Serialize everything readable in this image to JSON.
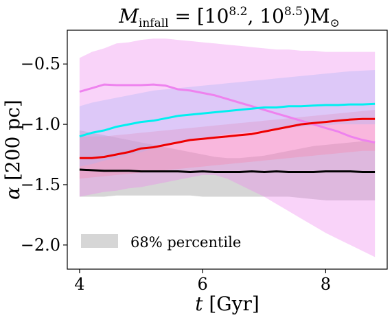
{
  "chart_data": {
    "type": "line",
    "title": "M_infall = [10^8.2, 10^8.5) M_sun",
    "title_parts": {
      "m": "M",
      "m_sub": "infall",
      "eq": " = [10",
      "exp1": "8.2",
      "sep": ", 10",
      "exp2": "8.5",
      "close": ")M",
      "sun": "⊙"
    },
    "xlabel": "t [Gyr]",
    "xlabel_parts": {
      "var": "t",
      "unit": " [Gyr]"
    },
    "ylabel": "α [200 pc]",
    "ylabel_parts": {
      "var": "α",
      "unit": " [200 pc]"
    },
    "xlim": [
      3.8,
      9.0
    ],
    "ylim": [
      -2.2,
      -0.22
    ],
    "x_ticks": [
      4,
      6,
      8
    ],
    "x_tick_labels": [
      "4",
      "6",
      "8"
    ],
    "y_ticks": [
      -2.0,
      -1.5,
      -1.0,
      -0.5
    ],
    "y_tick_labels": [
      "−2.0",
      "−1.5",
      "−1.0",
      "−0.5"
    ],
    "grid": false,
    "legend": {
      "placement": "lower-left",
      "entries": [
        {
          "label": "68% percentile",
          "color": "#cccccc"
        }
      ]
    },
    "x": [
      4.0,
      4.2,
      4.4,
      4.6,
      4.8,
      5.0,
      5.2,
      5.4,
      5.6,
      5.8,
      6.0,
      6.2,
      6.4,
      6.6,
      6.8,
      7.0,
      7.2,
      7.4,
      7.6,
      7.8,
      8.0,
      8.2,
      8.4,
      8.6,
      8.8
    ],
    "series": [
      {
        "color": "#ee82ee",
        "band_color": "#ee82ee",
        "values": [
          -0.73,
          -0.7,
          -0.67,
          -0.675,
          -0.675,
          -0.675,
          -0.67,
          -0.68,
          -0.71,
          -0.72,
          -0.74,
          -0.76,
          -0.79,
          -0.82,
          -0.85,
          -0.88,
          -0.91,
          -0.94,
          -0.97,
          -1.0,
          -1.03,
          -1.06,
          -1.1,
          -1.13,
          -1.15
        ],
        "lower": [
          -1.6,
          -1.58,
          -1.56,
          -1.55,
          -1.53,
          -1.52,
          -1.5,
          -1.48,
          -1.46,
          -1.44,
          -1.42,
          -1.42,
          -1.45,
          -1.5,
          -1.55,
          -1.6,
          -1.66,
          -1.72,
          -1.78,
          -1.84,
          -1.9,
          -1.95,
          -2.0,
          -2.05,
          -2.1
        ],
        "upper": [
          -0.45,
          -0.4,
          -0.37,
          -0.33,
          -0.32,
          -0.3,
          -0.29,
          -0.29,
          -0.3,
          -0.31,
          -0.32,
          -0.33,
          -0.34,
          -0.35,
          -0.36,
          -0.37,
          -0.38,
          -0.38,
          -0.39,
          -0.39,
          -0.4,
          -0.4,
          -0.4,
          -0.4,
          -0.4
        ]
      },
      {
        "color": "#00f0f0",
        "band_color": "#87cefa",
        "values": [
          -1.1,
          -1.07,
          -1.05,
          -1.02,
          -1.0,
          -0.98,
          -0.97,
          -0.95,
          -0.93,
          -0.92,
          -0.91,
          -0.9,
          -0.89,
          -0.88,
          -0.87,
          -0.86,
          -0.86,
          -0.85,
          -0.85,
          -0.845,
          -0.84,
          -0.84,
          -0.835,
          -0.835,
          -0.83
        ],
        "lower": [
          -1.35,
          -1.33,
          -1.3,
          -1.28,
          -1.25,
          -1.23,
          -1.2,
          -1.18,
          -1.16,
          -1.14,
          -1.12,
          -1.1,
          -1.08,
          -1.07,
          -1.06,
          -1.05,
          -1.04,
          -1.03,
          -1.02,
          -1.01,
          -1.01,
          -1.0,
          -1.0,
          -1.0,
          -1.0
        ],
        "upper": [
          -0.85,
          -0.82,
          -0.8,
          -0.78,
          -0.76,
          -0.74,
          -0.72,
          -0.71,
          -0.7,
          -0.69,
          -0.68,
          -0.67,
          -0.66,
          -0.65,
          -0.64,
          -0.63,
          -0.62,
          -0.61,
          -0.6,
          -0.59,
          -0.58,
          -0.57,
          -0.56,
          -0.555,
          -0.55
        ]
      },
      {
        "color": "#ee0000",
        "band_color": "#ff8888",
        "values": [
          -1.28,
          -1.28,
          -1.27,
          -1.25,
          -1.23,
          -1.2,
          -1.19,
          -1.17,
          -1.15,
          -1.13,
          -1.12,
          -1.11,
          -1.1,
          -1.09,
          -1.08,
          -1.06,
          -1.04,
          -1.02,
          -1.0,
          -0.99,
          -0.98,
          -0.97,
          -0.96,
          -0.955,
          -0.955
        ],
        "lower": [
          -1.45,
          -1.44,
          -1.43,
          -1.42,
          -1.41,
          -1.4,
          -1.39,
          -1.38,
          -1.37,
          -1.36,
          -1.35,
          -1.34,
          -1.33,
          -1.32,
          -1.31,
          -1.3,
          -1.29,
          -1.28,
          -1.27,
          -1.26,
          -1.25,
          -1.24,
          -1.23,
          -1.22,
          -1.22
        ],
        "upper": [
          -1.1,
          -1.1,
          -1.1,
          -1.09,
          -1.08,
          -1.07,
          -1.06,
          -1.05,
          -1.04,
          -1.03,
          -1.02,
          -1.01,
          -1.0,
          -0.99,
          -0.98,
          -0.97,
          -0.96,
          -0.95,
          -0.94,
          -0.93,
          -0.92,
          -0.91,
          -0.9,
          -0.89,
          -0.88
        ]
      },
      {
        "color": "#000000",
        "band_color": "#b4b4b4",
        "values": [
          -1.375,
          -1.38,
          -1.385,
          -1.385,
          -1.385,
          -1.39,
          -1.39,
          -1.39,
          -1.39,
          -1.395,
          -1.39,
          -1.395,
          -1.395,
          -1.395,
          -1.39,
          -1.395,
          -1.39,
          -1.395,
          -1.395,
          -1.395,
          -1.39,
          -1.39,
          -1.39,
          -1.395,
          -1.395
        ],
        "lower": [
          -1.6,
          -1.6,
          -1.6,
          -1.59,
          -1.59,
          -1.59,
          -1.59,
          -1.59,
          -1.59,
          -1.59,
          -1.6,
          -1.6,
          -1.6,
          -1.6,
          -1.6,
          -1.6,
          -1.6,
          -1.6,
          -1.61,
          -1.62,
          -1.63,
          -1.63,
          -1.63,
          -1.63,
          -1.63
        ],
        "upper": [
          -1.05,
          -1.07,
          -1.09,
          -1.11,
          -1.13,
          -1.15,
          -1.17,
          -1.19,
          -1.21,
          -1.23,
          -1.25,
          -1.27,
          -1.28,
          -1.28,
          -1.27,
          -1.26,
          -1.24,
          -1.22,
          -1.2,
          -1.18,
          -1.17,
          -1.16,
          -1.15,
          -1.14,
          -1.14
        ]
      }
    ]
  }
}
